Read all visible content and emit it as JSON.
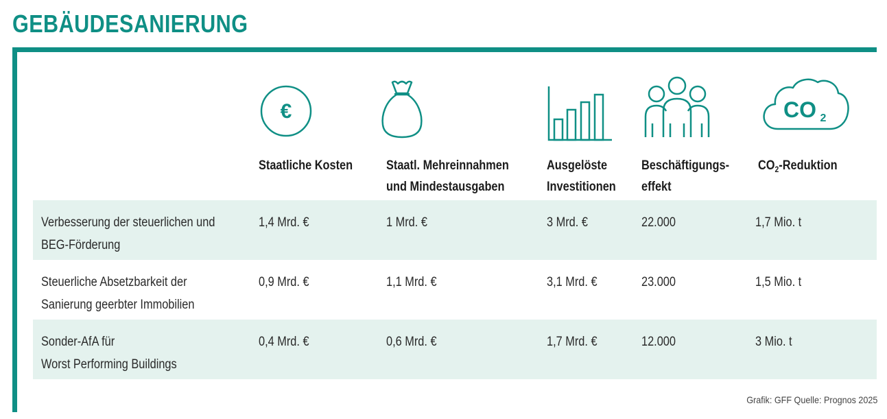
{
  "title": "GEBÄUDESANIERUNG",
  "colors": {
    "accent": "#0f8f85",
    "row_shade": "#e4f2ee"
  },
  "columns": [
    {
      "icon": "euro-circle-icon",
      "icon_text": "€",
      "label_lines": [
        "Staatliche Kosten"
      ]
    },
    {
      "icon": "money-bag-icon",
      "label_lines": [
        "Staatl. Mehreinnahmen",
        "und Mindestausgaben"
      ]
    },
    {
      "icon": "bar-chart-icon",
      "label_lines": [
        "Ausgelöste",
        "Investitionen"
      ]
    },
    {
      "icon": "people-group-icon",
      "label_lines": [
        "Beschäftigungs-",
        "effekt"
      ]
    },
    {
      "icon": "co2-cloud-icon",
      "icon_text": "CO",
      "icon_sub": "2",
      "label_pre": "CO",
      "label_sub": "2",
      "label_post": "-Reduktion"
    }
  ],
  "rows": [
    {
      "desc": [
        "Verbesserung der steuerlichen und",
        "BEG-Förderung"
      ],
      "values": [
        "1,4 Mrd. €",
        "1 Mrd. €",
        "3 Mrd. €",
        "22.000",
        "1,7 Mio. t"
      ],
      "shaded": true
    },
    {
      "desc": [
        "Steuerliche Absetzbarkeit der",
        "Sanierung geerbter Immobilien"
      ],
      "values": [
        "0,9 Mrd. €",
        "1,1 Mrd. €",
        "3,1 Mrd. €",
        "23.000",
        "1,5 Mio. t"
      ],
      "shaded": false
    },
    {
      "desc": [
        "Sonder-AfA für",
        "Worst Performing Buildings"
      ],
      "values": [
        "0,4 Mrd. €",
        "0,6 Mrd. €",
        "1,7 Mrd. €",
        "12.000",
        "3 Mio. t"
      ],
      "shaded": true
    }
  ],
  "source": "Grafik: GFF Quelle: Prognos 2025"
}
